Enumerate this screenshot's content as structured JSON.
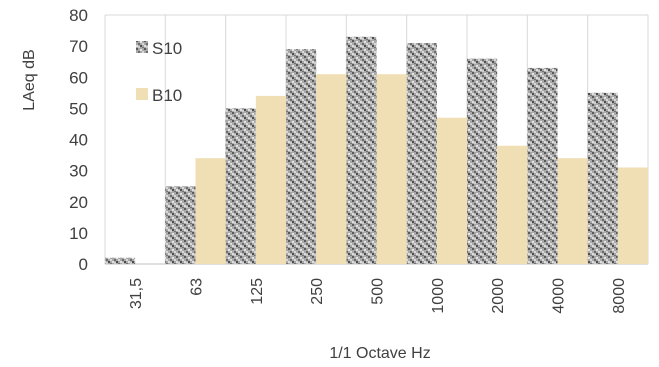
{
  "chart_data": {
    "type": "bar",
    "title": "",
    "xlabel": "1/1 Octave Hz",
    "ylabel": "LAeq  dB",
    "ylim": [
      0,
      80
    ],
    "yticks": [
      0,
      10,
      20,
      30,
      40,
      50,
      60,
      70,
      80
    ],
    "categories": [
      "31,5",
      "63",
      "125",
      "250",
      "500",
      "1000",
      "2000",
      "4000",
      "8000"
    ],
    "series": [
      {
        "name": "S10",
        "values": [
          2,
          25,
          50,
          69,
          73,
          71,
          66,
          63,
          55
        ],
        "color": "#9a9a9a",
        "pattern": "speckled-grey"
      },
      {
        "name": "B10",
        "values": [
          0,
          34,
          54,
          61,
          61,
          47,
          38,
          34,
          31
        ],
        "color": "#f0dfb4",
        "pattern": "solid"
      }
    ],
    "grid": "vertical",
    "legend_position": "top-left-inside"
  }
}
